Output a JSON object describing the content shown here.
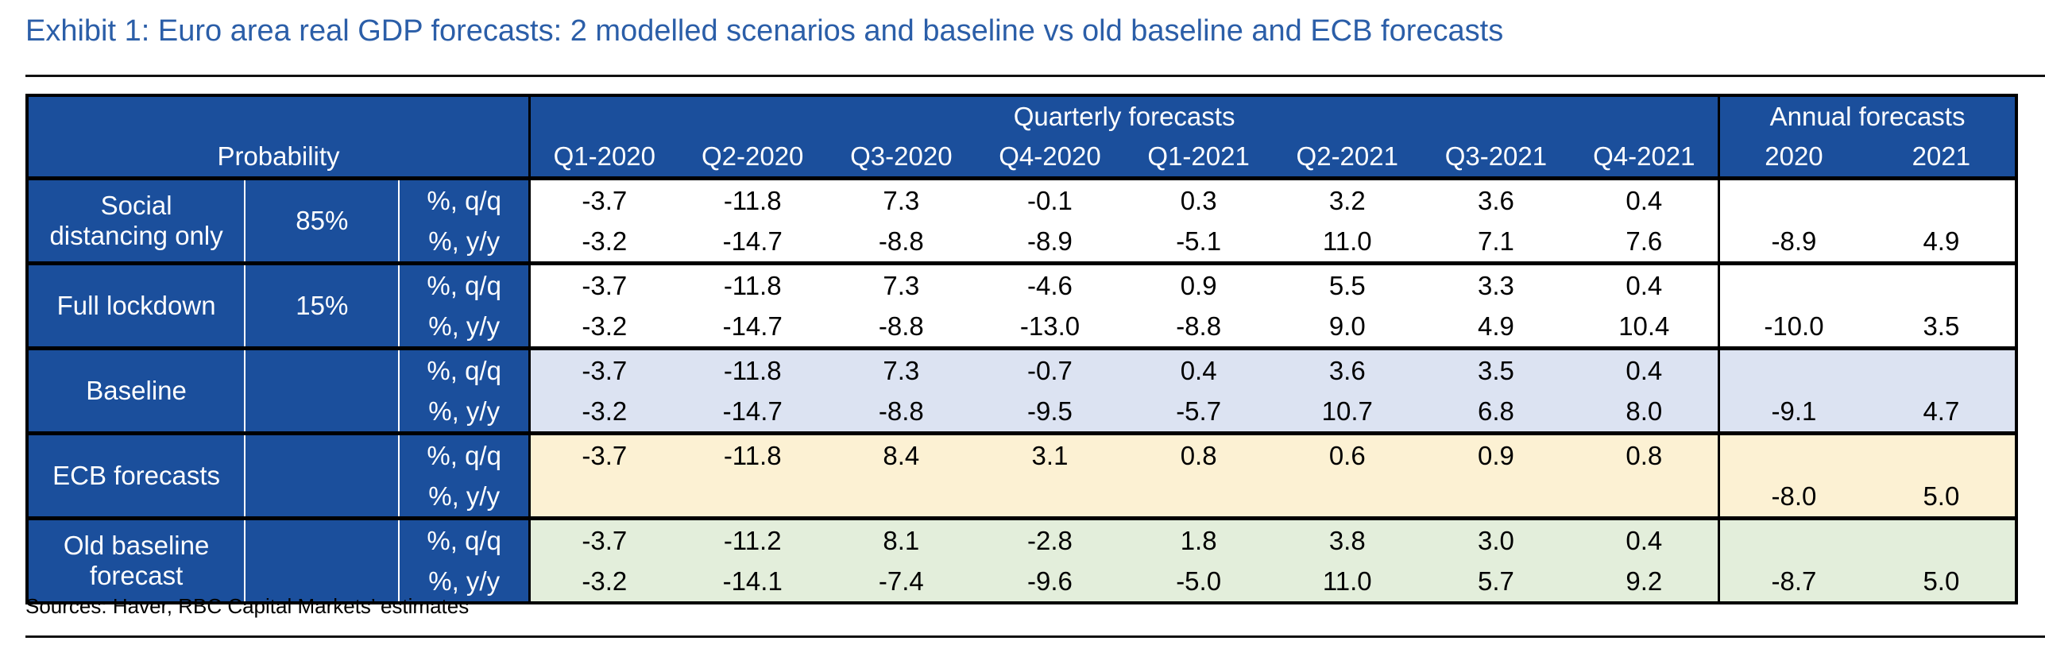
{
  "title": "Exhibit 1: Euro area real GDP forecasts: 2 modelled scenarios and baseline vs old baseline and ECB forecasts",
  "source": "Sources: Haver, RBC Capital Markets’ estimates",
  "colors": {
    "title": "#2b5ea8",
    "header_bg": "#1b4f9c",
    "baseline_bg": "#dce3f2",
    "ecb_bg": "#fcf1d3",
    "old_baseline_bg": "#e3eedb"
  },
  "chart_data": {
    "type": "table",
    "header": {
      "probability": "Probability",
      "quarterly_group": "Quarterly forecasts",
      "annual_group": "Annual forecasts",
      "quarterly_columns": [
        "Q1-2020",
        "Q2-2020",
        "Q3-2020",
        "Q4-2020",
        "Q1-2021",
        "Q2-2021",
        "Q3-2021",
        "Q4-2021"
      ],
      "annual_columns": [
        "2020",
        "2021"
      ]
    },
    "rows": [
      {
        "label_line1": "Social",
        "label_line2": "distancing only",
        "probability": "85%",
        "qq_label": "%, q/q",
        "yy_label": "%, y/y",
        "qq": [
          "-3.7",
          "-11.8",
          "7.3",
          "-0.1",
          "0.3",
          "3.2",
          "3.6",
          "0.4"
        ],
        "yy": [
          "-3.2",
          "-14.7",
          "-8.8",
          "-8.9",
          "-5.1",
          "11.0",
          "7.1",
          "7.6"
        ],
        "annual": [
          "-8.9",
          "4.9"
        ]
      },
      {
        "label_line1": "Full lockdown",
        "label_line2": "",
        "probability": "15%",
        "qq_label": "%, q/q",
        "yy_label": "%, y/y",
        "qq": [
          "-3.7",
          "-11.8",
          "7.3",
          "-4.6",
          "0.9",
          "5.5",
          "3.3",
          "0.4"
        ],
        "yy": [
          "-3.2",
          "-14.7",
          "-8.8",
          "-13.0",
          "-8.8",
          "9.0",
          "4.9",
          "10.4"
        ],
        "annual": [
          "-10.0",
          "3.5"
        ]
      },
      {
        "label_line1": "Baseline",
        "label_line2": "",
        "probability": "",
        "qq_label": "%, q/q",
        "yy_label": "%, y/y",
        "qq": [
          "-3.7",
          "-11.8",
          "7.3",
          "-0.7",
          "0.4",
          "3.6",
          "3.5",
          "0.4"
        ],
        "yy": [
          "-3.2",
          "-14.7",
          "-8.8",
          "-9.5",
          "-5.7",
          "10.7",
          "6.8",
          "8.0"
        ],
        "annual": [
          "-9.1",
          "4.7"
        ]
      },
      {
        "label_line1": "ECB forecasts",
        "label_line2": "",
        "probability": "",
        "qq_label": "%, q/q",
        "yy_label": "%, y/y",
        "qq": [
          "-3.7",
          "-11.8",
          "8.4",
          "3.1",
          "0.8",
          "0.6",
          "0.9",
          "0.8"
        ],
        "yy": [
          "",
          "",
          "",
          "",
          "",
          "",
          "",
          ""
        ],
        "annual": [
          "-8.0",
          "5.0"
        ]
      },
      {
        "label_line1": "Old baseline",
        "label_line2": "forecast",
        "probability": "",
        "qq_label": "%, q/q",
        "yy_label": "%, y/y",
        "qq": [
          "-3.7",
          "-11.2",
          "8.1",
          "-2.8",
          "1.8",
          "3.8",
          "3.0",
          "0.4"
        ],
        "yy": [
          "-3.2",
          "-14.1",
          "-7.4",
          "-9.6",
          "-5.0",
          "11.0",
          "5.7",
          "9.2"
        ],
        "annual": [
          "-8.7",
          "5.0"
        ]
      }
    ]
  }
}
